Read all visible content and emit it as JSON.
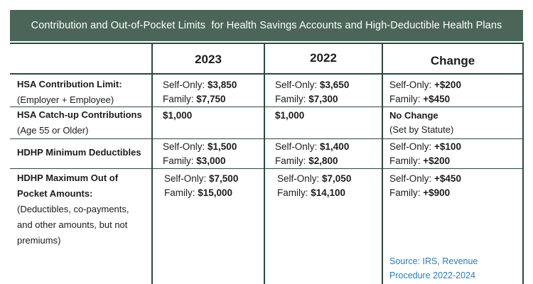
{
  "title": "Contribution and Out-of-Pocket Limits  for Health Savings Accounts and High-Deductible Health Plans",
  "columns": [
    "2023",
    "2022",
    "Change"
  ],
  "rows": [
    {
      "label_bold": "HSA Contribution Limit:",
      "label_sub": "(Employer + Employee)",
      "c2023": [
        {
          "pre": "Self-Only: ",
          "val": "$3,850"
        },
        {
          "pre": "Family: ",
          "val": "$7,750"
        }
      ],
      "c2022": [
        {
          "pre": "Self-Only: ",
          "val": "$3,650"
        },
        {
          "pre": "Family: ",
          "val": "$7,300"
        }
      ],
      "change": [
        {
          "pre": "Self-Only: ",
          "val": "+$200"
        },
        {
          "pre": "Family: ",
          "val": "+$450"
        }
      ]
    },
    {
      "label_bold": "HSA Catch-up Contributions",
      "label_sub": "(Age 55 or Older)",
      "c2023": [
        {
          "pre": "",
          "val": "$1,000"
        }
      ],
      "c2022": [
        {
          "pre": "",
          "val": "$1,000"
        }
      ],
      "change": [
        {
          "pre": "",
          "val": "No Change"
        },
        {
          "pre": "(Set by Statute)",
          "val": ""
        }
      ]
    },
    {
      "label_bold": "HDHP Minimum Deductibles",
      "label_sub": "",
      "c2023": [
        {
          "pre": "Self-Only: ",
          "val": "$1,500"
        },
        {
          "pre": "Family: ",
          "val": "$3,000"
        }
      ],
      "c2022": [
        {
          "pre": "Self-Only: ",
          "val": "$1,400"
        },
        {
          "pre": "Family: ",
          "val": "$2,800"
        }
      ],
      "change": [
        {
          "pre": "Self-Only: ",
          "val": "+$100"
        },
        {
          "pre": "Family: ",
          "val": "+$200"
        }
      ]
    },
    {
      "label_bold": "HDHP Maximum Out of Pocket Amounts:",
      "label_sub": "(Deductibles, co-payments, and other amounts, but not premiums)",
      "c2023": [
        {
          "pre": "Self-Only: ",
          "val": "$7,500"
        },
        {
          "pre": "Family: ",
          "val": "$15,000"
        }
      ],
      "c2022": [
        {
          "pre": "Self-Only: ",
          "val": "$7,050"
        },
        {
          "pre": "Family: ",
          "val": "$14,100"
        }
      ],
      "change": [
        {
          "pre": "Self-Only: ",
          "val": "+$450"
        },
        {
          "pre": "Family: ",
          "val": "+$900"
        }
      ]
    }
  ],
  "source": "Source:  IRS, Revenue Procedure 2022-2024"
}
